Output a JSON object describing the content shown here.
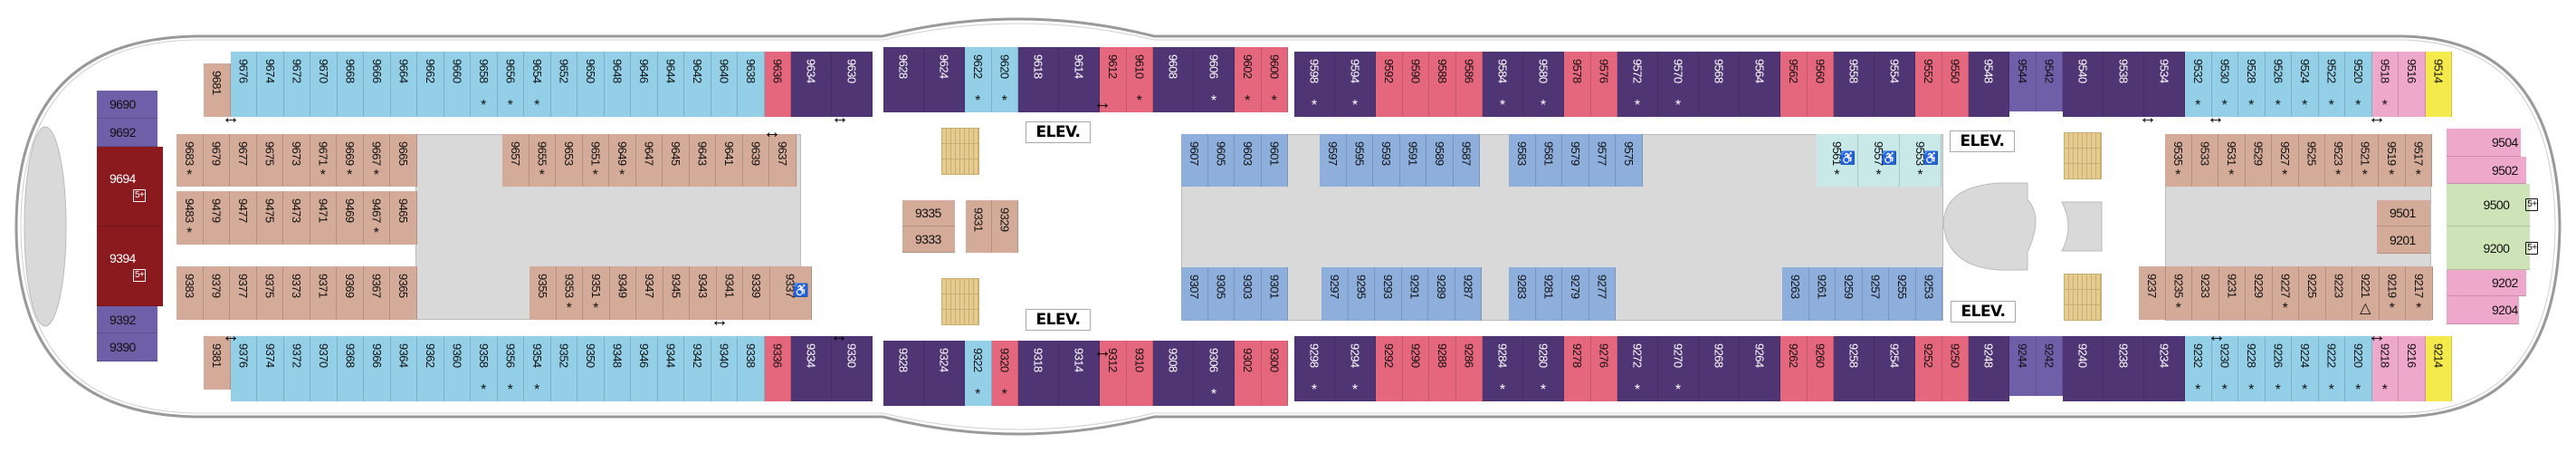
{
  "category_colors": {
    "B": "#93cfe6",
    "P": "#4f3574",
    "R": "#e5677e",
    "T": "#d3ab98",
    "L": "#8eafdc",
    "A": "#c9e9e9",
    "K": "#eea8cb",
    "Y": "#f5ea4c",
    "G": "#cfe3b8",
    "D": "#8b1a1f",
    "M": "#6f5fa8"
  },
  "labels": {
    "elevator": "ELEV.",
    "badge": "5+",
    "star": "*",
    "triangle": "△"
  },
  "rows": {
    "top": [
      [
        {
          "n": "9681",
          "c": "T"
        },
        {
          "n": "9676",
          "c": "B"
        },
        {
          "n": "9674",
          "c": "B"
        },
        {
          "n": "9672",
          "c": "B"
        },
        {
          "n": "9670",
          "c": "B"
        },
        {
          "n": "9668",
          "c": "B"
        },
        {
          "n": "9666",
          "c": "B"
        },
        {
          "n": "9664",
          "c": "B"
        },
        {
          "n": "9662",
          "c": "B"
        },
        {
          "n": "9660",
          "c": "B"
        },
        {
          "n": "9658",
          "c": "B",
          "s": 1
        },
        {
          "n": "9656",
          "c": "B",
          "s": 1
        },
        {
          "n": "9654",
          "c": "B",
          "s": 1
        },
        {
          "n": "9652",
          "c": "B"
        },
        {
          "n": "9650",
          "c": "B"
        },
        {
          "n": "9648",
          "c": "B"
        },
        {
          "n": "9646",
          "c": "B"
        },
        {
          "n": "9644",
          "c": "B"
        },
        {
          "n": "9642",
          "c": "B"
        },
        {
          "n": "9640",
          "c": "B"
        },
        {
          "n": "9638",
          "c": "B"
        },
        {
          "n": "9636",
          "c": "R"
        },
        {
          "n": "9634",
          "c": "P"
        },
        {
          "n": "9630",
          "c": "P"
        }
      ],
      [
        {
          "n": "9628",
          "c": "P"
        },
        {
          "n": "9624",
          "c": "P"
        },
        {
          "n": "9622",
          "c": "B",
          "s": 1
        },
        {
          "n": "9620",
          "c": "B",
          "s": 1
        },
        {
          "n": "9618",
          "c": "P"
        },
        {
          "n": "9614",
          "c": "P"
        },
        {
          "n": "9612",
          "c": "R"
        },
        {
          "n": "9610",
          "c": "R",
          "s": 1
        },
        {
          "n": "9608",
          "c": "P"
        },
        {
          "n": "9606",
          "c": "P",
          "s": 1
        },
        {
          "n": "9602",
          "c": "R",
          "s": 1
        },
        {
          "n": "9600",
          "c": "R",
          "s": 1
        }
      ],
      [
        {
          "n": "9598",
          "c": "P",
          "s": 1
        },
        {
          "n": "9594",
          "c": "P",
          "s": 1
        },
        {
          "n": "9592",
          "c": "R"
        },
        {
          "n": "9590",
          "c": "R"
        },
        {
          "n": "9588",
          "c": "R"
        },
        {
          "n": "9586",
          "c": "R"
        },
        {
          "n": "9584",
          "c": "P",
          "s": 1
        },
        {
          "n": "9580",
          "c": "P",
          "s": 1
        },
        {
          "n": "9578",
          "c": "R"
        },
        {
          "n": "9576",
          "c": "R"
        },
        {
          "n": "9572",
          "c": "P",
          "s": 1
        },
        {
          "n": "9570",
          "c": "P",
          "s": 1
        },
        {
          "n": "9568",
          "c": "P"
        },
        {
          "n": "9564",
          "c": "P"
        },
        {
          "n": "9562",
          "c": "R"
        },
        {
          "n": "9560",
          "c": "R"
        },
        {
          "n": "9558",
          "c": "P"
        },
        {
          "n": "9554",
          "c": "P"
        },
        {
          "n": "9552",
          "c": "R"
        },
        {
          "n": "9550",
          "c": "R"
        },
        {
          "n": "9548",
          "c": "P"
        },
        {
          "n": "9544",
          "c": "M"
        },
        {
          "n": "9542",
          "c": "M"
        },
        {
          "n": "9540",
          "c": "P"
        },
        {
          "n": "9538",
          "c": "P"
        },
        {
          "n": "9534",
          "c": "P"
        },
        {
          "n": "9532",
          "c": "B",
          "s": 1
        },
        {
          "n": "9530",
          "c": "B",
          "s": 1
        },
        {
          "n": "9528",
          "c": "B",
          "s": 1
        },
        {
          "n": "9526",
          "c": "B",
          "s": 1
        },
        {
          "n": "9524",
          "c": "B",
          "s": 1
        },
        {
          "n": "9522",
          "c": "B",
          "s": 1
        },
        {
          "n": "9520",
          "c": "B",
          "s": 1
        },
        {
          "n": "9518",
          "c": "K",
          "s": 1
        },
        {
          "n": "9516",
          "c": "K"
        },
        {
          "n": "9514",
          "c": "Y"
        }
      ]
    ],
    "bottom": [
      [
        {
          "n": "9381",
          "c": "T"
        },
        {
          "n": "9376",
          "c": "B"
        },
        {
          "n": "9374",
          "c": "B"
        },
        {
          "n": "9372",
          "c": "B"
        },
        {
          "n": "9370",
          "c": "B"
        },
        {
          "n": "9368",
          "c": "B"
        },
        {
          "n": "9366",
          "c": "B"
        },
        {
          "n": "9364",
          "c": "B"
        },
        {
          "n": "9362",
          "c": "B"
        },
        {
          "n": "9360",
          "c": "B"
        },
        {
          "n": "9358",
          "c": "B",
          "s": 1
        },
        {
          "n": "9356",
          "c": "B",
          "s": 1
        },
        {
          "n": "9354",
          "c": "B",
          "s": 1
        },
        {
          "n": "9352",
          "c": "B"
        },
        {
          "n": "9350",
          "c": "B"
        },
        {
          "n": "9348",
          "c": "B"
        },
        {
          "n": "9346",
          "c": "B"
        },
        {
          "n": "9344",
          "c": "B"
        },
        {
          "n": "9342",
          "c": "B"
        },
        {
          "n": "9340",
          "c": "B"
        },
        {
          "n": "9338",
          "c": "B"
        },
        {
          "n": "9336",
          "c": "R"
        },
        {
          "n": "9334",
          "c": "P"
        },
        {
          "n": "9330",
          "c": "P"
        }
      ],
      [
        {
          "n": "9328",
          "c": "P"
        },
        {
          "n": "9324",
          "c": "P"
        },
        {
          "n": "9322",
          "c": "B",
          "s": 1
        },
        {
          "n": "9320",
          "c": "R",
          "s": 1
        },
        {
          "n": "9318",
          "c": "P"
        },
        {
          "n": "9314",
          "c": "P"
        },
        {
          "n": "9312",
          "c": "R"
        },
        {
          "n": "9310",
          "c": "R"
        },
        {
          "n": "9308",
          "c": "P"
        },
        {
          "n": "9306",
          "c": "P",
          "s": 1
        },
        {
          "n": "9302",
          "c": "R"
        },
        {
          "n": "9300",
          "c": "R"
        }
      ],
      [
        {
          "n": "9298",
          "c": "P",
          "s": 1
        },
        {
          "n": "9294",
          "c": "P",
          "s": 1
        },
        {
          "n": "9292",
          "c": "R"
        },
        {
          "n": "9290",
          "c": "R"
        },
        {
          "n": "9288",
          "c": "R"
        },
        {
          "n": "9286",
          "c": "R"
        },
        {
          "n": "9284",
          "c": "P",
          "s": 1
        },
        {
          "n": "9280",
          "c": "P",
          "s": 1
        },
        {
          "n": "9278",
          "c": "R"
        },
        {
          "n": "9276",
          "c": "R"
        },
        {
          "n": "9272",
          "c": "P",
          "s": 1
        },
        {
          "n": "9270",
          "c": "P",
          "s": 1
        },
        {
          "n": "9268",
          "c": "P"
        },
        {
          "n": "9264",
          "c": "P"
        },
        {
          "n": "9262",
          "c": "R"
        },
        {
          "n": "9260",
          "c": "R"
        },
        {
          "n": "9258",
          "c": "P"
        },
        {
          "n": "9254",
          "c": "P"
        },
        {
          "n": "9252",
          "c": "R"
        },
        {
          "n": "9250",
          "c": "R"
        },
        {
          "n": "9248",
          "c": "P"
        },
        {
          "n": "9244",
          "c": "M"
        },
        {
          "n": "9242",
          "c": "M"
        },
        {
          "n": "9240",
          "c": "P"
        },
        {
          "n": "9238",
          "c": "P"
        },
        {
          "n": "9234",
          "c": "P"
        },
        {
          "n": "9232",
          "c": "B",
          "s": 1
        },
        {
          "n": "9230",
          "c": "B",
          "s": 1
        },
        {
          "n": "9228",
          "c": "B",
          "s": 1
        },
        {
          "n": "9226",
          "c": "B",
          "s": 1
        },
        {
          "n": "9224",
          "c": "B",
          "s": 1
        },
        {
          "n": "9222",
          "c": "B",
          "s": 1
        },
        {
          "n": "9220",
          "c": "B",
          "s": 1
        },
        {
          "n": "9218",
          "c": "K",
          "s": 1
        },
        {
          "n": "9216",
          "c": "K"
        },
        {
          "n": "9214",
          "c": "Y"
        }
      ]
    ],
    "inner_upper": [
      [
        {
          "n": "9683",
          "c": "T",
          "s": 1
        },
        {
          "n": "9679",
          "c": "T"
        },
        {
          "n": "9677",
          "c": "T"
        },
        {
          "n": "9675",
          "c": "T"
        },
        {
          "n": "9673",
          "c": "T"
        },
        {
          "n": "9671",
          "c": "T",
          "s": 1
        },
        {
          "n": "9669",
          "c": "T",
          "s": 1
        },
        {
          "n": "9667",
          "c": "T",
          "s": 1
        },
        {
          "n": "9665",
          "c": "T"
        }
      ],
      [
        {
          "n": "9657",
          "c": "T"
        },
        {
          "n": "9655",
          "c": "T",
          "s": 1
        },
        {
          "n": "9653",
          "c": "T"
        },
        {
          "n": "9651",
          "c": "T",
          "s": 1
        },
        {
          "n": "9649",
          "c": "T",
          "s": 1
        },
        {
          "n": "9647",
          "c": "T"
        },
        {
          "n": "9645",
          "c": "T"
        },
        {
          "n": "9643",
          "c": "T"
        },
        {
          "n": "9641",
          "c": "T"
        },
        {
          "n": "9639",
          "c": "T"
        },
        {
          "n": "9637",
          "c": "T"
        }
      ],
      [
        {
          "n": "9607",
          "c": "L"
        },
        {
          "n": "9605",
          "c": "L"
        },
        {
          "n": "9603",
          "c": "L"
        },
        {
          "n": "9601",
          "c": "L"
        }
      ],
      [
        {
          "n": "9597",
          "c": "L"
        },
        {
          "n": "9595",
          "c": "L"
        },
        {
          "n": "9593",
          "c": "L"
        },
        {
          "n": "9591",
          "c": "L"
        },
        {
          "n": "9589",
          "c": "L"
        },
        {
          "n": "9587",
          "c": "L"
        }
      ],
      [
        {
          "n": "9583",
          "c": "L"
        },
        {
          "n": "9581",
          "c": "L"
        },
        {
          "n": "9579",
          "c": "L"
        },
        {
          "n": "9577",
          "c": "L"
        },
        {
          "n": "9575",
          "c": "L"
        }
      ],
      [
        {
          "n": "9561",
          "c": "A",
          "s": 1,
          "a": 1
        },
        {
          "n": "9557",
          "c": "A",
          "s": 1,
          "a": 1
        },
        {
          "n": "9553",
          "c": "A",
          "s": 1,
          "a": 1
        }
      ],
      [
        {
          "n": "9535",
          "c": "T",
          "s": 1
        },
        {
          "n": "9533",
          "c": "T"
        },
        {
          "n": "9531",
          "c": "T",
          "s": 1
        },
        {
          "n": "9529",
          "c": "T"
        },
        {
          "n": "9527",
          "c": "T",
          "s": 1
        },
        {
          "n": "9525",
          "c": "T"
        },
        {
          "n": "9523",
          "c": "T",
          "s": 1
        },
        {
          "n": "9521",
          "c": "T",
          "s": 1
        },
        {
          "n": "9519",
          "c": "T",
          "s": 1
        },
        {
          "n": "9517",
          "c": "T",
          "s": 1
        }
      ]
    ],
    "inner_second": [
      [
        {
          "n": "9483",
          "c": "T",
          "s": 1
        },
        {
          "n": "9479",
          "c": "T"
        },
        {
          "n": "9477",
          "c": "T"
        },
        {
          "n": "9475",
          "c": "T"
        },
        {
          "n": "9473",
          "c": "T"
        },
        {
          "n": "9471",
          "c": "T"
        },
        {
          "n": "9469",
          "c": "T"
        },
        {
          "n": "9467",
          "c": "T",
          "s": 1
        },
        {
          "n": "9465",
          "c": "T"
        }
      ]
    ],
    "inner_lower": [
      [
        {
          "n": "9383",
          "c": "T"
        },
        {
          "n": "9379",
          "c": "T"
        },
        {
          "n": "9377",
          "c": "T"
        },
        {
          "n": "9375",
          "c": "T"
        },
        {
          "n": "9373",
          "c": "T"
        },
        {
          "n": "9371",
          "c": "T"
        },
        {
          "n": "9369",
          "c": "T"
        },
        {
          "n": "9367",
          "c": "T"
        },
        {
          "n": "9365",
          "c": "T"
        }
      ],
      [
        {
          "n": "9355",
          "c": "T"
        },
        {
          "n": "9353",
          "c": "T",
          "s": 1
        },
        {
          "n": "9351",
          "c": "T",
          "s": 1
        },
        {
          "n": "9349",
          "c": "T"
        },
        {
          "n": "9347",
          "c": "T"
        },
        {
          "n": "9345",
          "c": "T"
        },
        {
          "n": "9343",
          "c": "T"
        },
        {
          "n": "9341",
          "c": "T"
        },
        {
          "n": "9339",
          "c": "T"
        },
        {
          "n": "9337",
          "c": "T",
          "a": 1
        }
      ],
      [
        {
          "n": "9307",
          "c": "L"
        },
        {
          "n": "9305",
          "c": "L"
        },
        {
          "n": "9303",
          "c": "L"
        },
        {
          "n": "9301",
          "c": "L"
        }
      ],
      [
        {
          "n": "9297",
          "c": "L"
        },
        {
          "n": "9295",
          "c": "L"
        },
        {
          "n": "9293",
          "c": "L"
        },
        {
          "n": "9291",
          "c": "L"
        },
        {
          "n": "9289",
          "c": "L"
        },
        {
          "n": "9287",
          "c": "L"
        }
      ],
      [
        {
          "n": "9283",
          "c": "L"
        },
        {
          "n": "9281",
          "c": "L"
        },
        {
          "n": "9279",
          "c": "L"
        },
        {
          "n": "9277",
          "c": "L"
        }
      ],
      [
        {
          "n": "9263",
          "c": "L"
        },
        {
          "n": "9261",
          "c": "L"
        },
        {
          "n": "9259",
          "c": "L"
        },
        {
          "n": "9257",
          "c": "L"
        },
        {
          "n": "9255",
          "c": "L"
        },
        {
          "n": "9253",
          "c": "L"
        }
      ],
      [
        {
          "n": "9237",
          "c": "T"
        },
        {
          "n": "9235",
          "c": "T",
          "s": 1
        },
        {
          "n": "9233",
          "c": "T"
        },
        {
          "n": "9231",
          "c": "T"
        },
        {
          "n": "9229",
          "c": "T"
        },
        {
          "n": "9227",
          "c": "T",
          "s": 1
        },
        {
          "n": "9225",
          "c": "T"
        },
        {
          "n": "9223",
          "c": "T"
        },
        {
          "n": "9221",
          "c": "T",
          "t": 1
        },
        {
          "n": "9219",
          "c": "T",
          "s": 1
        },
        {
          "n": "9217",
          "c": "T",
          "s": 1
        }
      ]
    ]
  },
  "forward": [
    {
      "n": "9690",
      "c": "M"
    },
    {
      "n": "9692",
      "c": "M"
    },
    {
      "n": "9694",
      "c": "D",
      "b": 1
    },
    {
      "n": "9394",
      "c": "D",
      "b": 1
    },
    {
      "n": "9392",
      "c": "M"
    },
    {
      "n": "9390",
      "c": "M"
    }
  ],
  "aft": [
    {
      "n": "9504",
      "c": "K"
    },
    {
      "n": "9502",
      "c": "K"
    },
    {
      "n": "9500",
      "c": "G",
      "b": 1
    },
    {
      "n": "9200",
      "c": "G",
      "b": 1
    },
    {
      "n": "9202",
      "c": "K"
    },
    {
      "n": "9204",
      "c": "K"
    }
  ],
  "midship": [
    {
      "n": "9335",
      "c": "T"
    },
    {
      "n": "9333",
      "c": "T"
    },
    {
      "n": "9331",
      "c": "T"
    },
    {
      "n": "9329",
      "c": "T"
    },
    {
      "n": "9501",
      "c": "T"
    },
    {
      "n": "9201",
      "c": "T"
    }
  ]
}
